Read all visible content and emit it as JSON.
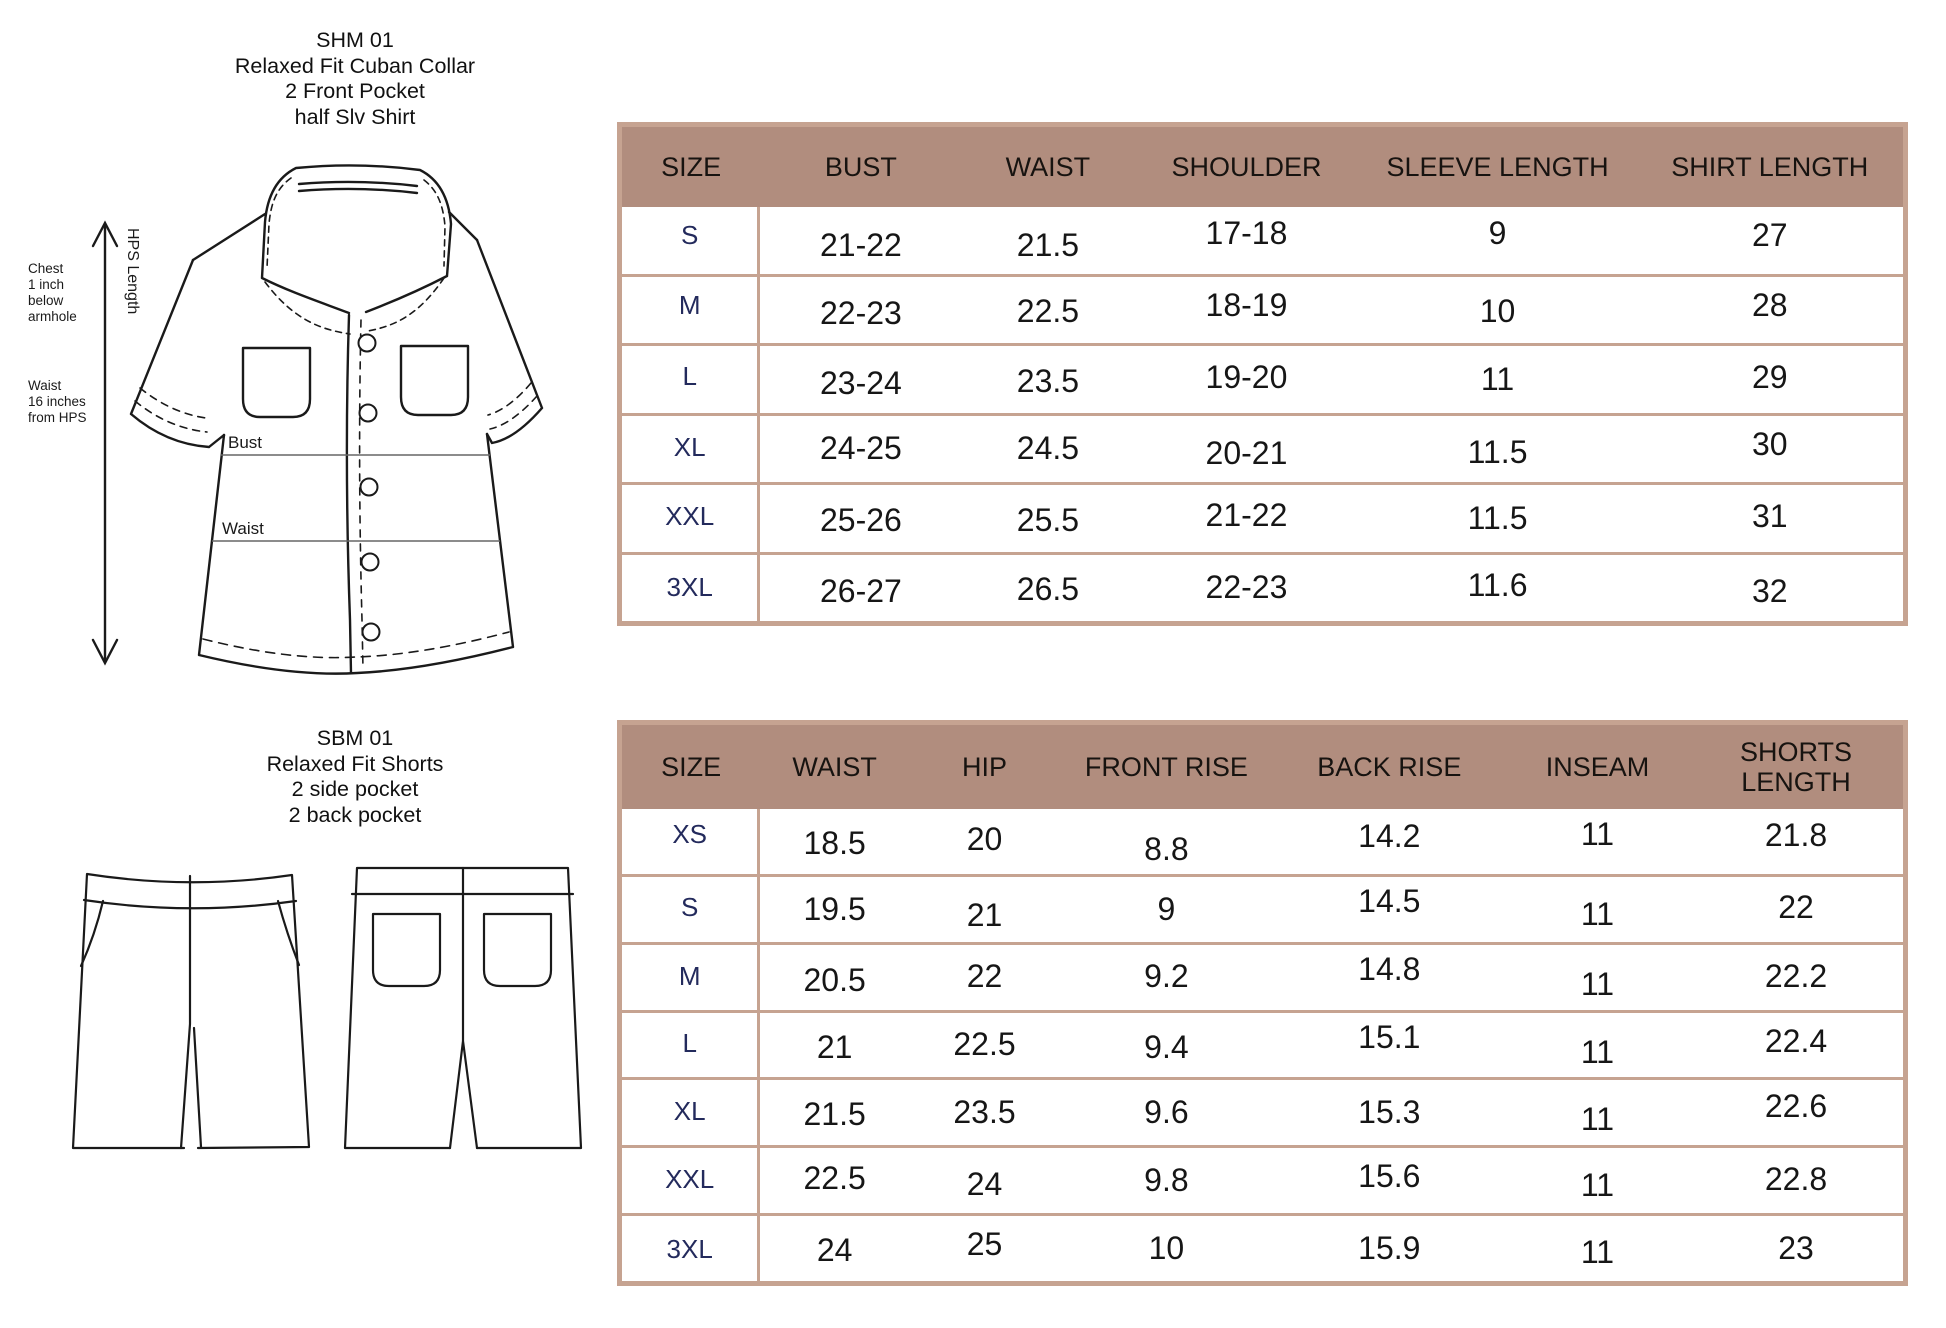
{
  "colors": {
    "header_bg": "#b18d7e",
    "grid_line": "#c6a391",
    "size_label_text": "#232a5c",
    "value_text": "#161616",
    "line_art": "#1a1a1a"
  },
  "shirt_section": {
    "title_lines": [
      "SHM 01",
      "Relaxed Fit Cuban Collar",
      "2 Front Pocket",
      "half Slv Shirt"
    ],
    "drawing_labels": {
      "chest_note_lines": [
        "Chest",
        "1 inch",
        "below",
        "armhole"
      ],
      "waist_note_lines": [
        "Waist",
        "16 inches",
        "from HPS"
      ],
      "hps_length": "HPS Length",
      "bust_line": "Bust",
      "waist_line": "Waist"
    },
    "table": {
      "headers": [
        "SIZE",
        "BUST",
        "WAIST",
        "SHOULDER",
        "SLEEVE LENGTH",
        "SHIRT LENGTH"
      ],
      "rows": [
        {
          "size": "S",
          "values": [
            "21-22",
            "21.5",
            "17-18",
            "9",
            "27"
          ]
        },
        {
          "size": "M",
          "values": [
            "22-23",
            "22.5",
            "18-19",
            "10",
            "28"
          ]
        },
        {
          "size": "L",
          "values": [
            "23-24",
            "23.5",
            "19-20",
            "11",
            "29"
          ]
        },
        {
          "size": "XL",
          "values": [
            "24-25",
            "24.5",
            "20-21",
            "11.5",
            "30"
          ]
        },
        {
          "size": "XXL",
          "values": [
            "25-26",
            "25.5",
            "21-22",
            "11.5",
            "31"
          ]
        },
        {
          "size": "3XL",
          "values": [
            "26-27",
            "26.5",
            "22-23",
            "11.6",
            "32"
          ]
        }
      ]
    }
  },
  "shorts_section": {
    "title_lines": [
      "SBM 01",
      "Relaxed Fit Shorts",
      "2 side pocket",
      "2 back pocket"
    ],
    "table": {
      "headers": [
        "SIZE",
        "WAIST",
        "HIP",
        "FRONT RISE",
        "BACK RISE",
        "INSEAM",
        "SHORTS LENGTH"
      ],
      "rows": [
        {
          "size": "XS",
          "values": [
            "18.5",
            "20",
            "8.8",
            "14.2",
            "11",
            "21.8"
          ]
        },
        {
          "size": "S",
          "values": [
            "19.5",
            "21",
            "9",
            "14.5",
            "11",
            "22"
          ]
        },
        {
          "size": "M",
          "values": [
            "20.5",
            "22",
            "9.2",
            "14.8",
            "11",
            "22.2"
          ]
        },
        {
          "size": "L",
          "values": [
            "21",
            "22.5",
            "9.4",
            "15.1",
            "11",
            "22.4"
          ]
        },
        {
          "size": "XL",
          "values": [
            "21.5",
            "23.5",
            "9.6",
            "15.3",
            "11",
            "22.6"
          ]
        },
        {
          "size": "XXL",
          "values": [
            "22.5",
            "24",
            "9.8",
            "15.6",
            "11",
            "22.8"
          ]
        },
        {
          "size": "3XL",
          "values": [
            "24",
            "25",
            "10",
            "15.9",
            "11",
            "23"
          ]
        }
      ]
    }
  }
}
